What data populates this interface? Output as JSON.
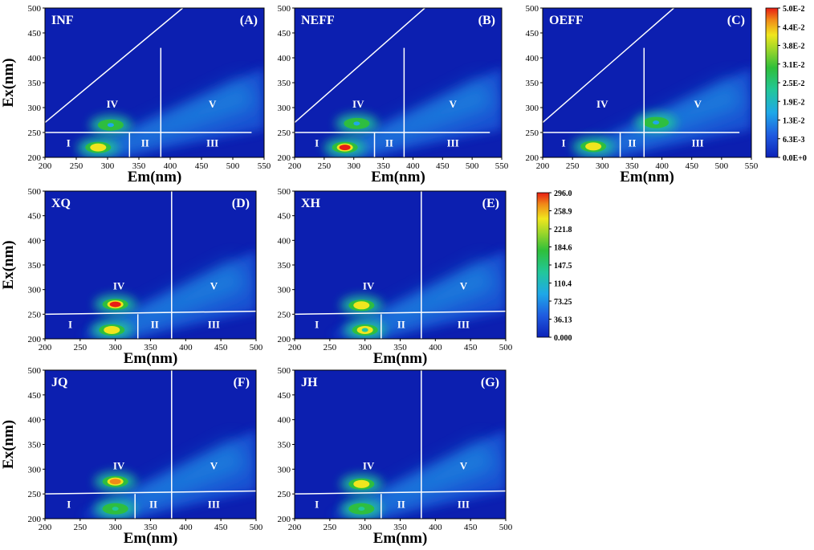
{
  "figure": {
    "panels": [
      {
        "name": "INF",
        "tag": "(A)",
        "ytick_labels": [
          "200",
          "250",
          "300",
          "350",
          "400",
          "450",
          "500"
        ],
        "xtick_labels": [
          "200",
          "250",
          "300",
          "350",
          "400",
          "450",
          "500",
          "550"
        ],
        "xlabel": "Em(nm)",
        "ylabel": "Ex(nm)",
        "region_labels": [
          "I",
          "II",
          "III",
          "IV",
          "V"
        ]
      },
      {
        "name": "NEFF",
        "tag": "(B)",
        "ytick_labels": [
          "200",
          "250",
          "300",
          "350",
          "400",
          "450",
          "500"
        ],
        "xtick_labels": [
          "200",
          "250",
          "300",
          "350",
          "400",
          "450",
          "500",
          "550"
        ],
        "xlabel": "Em(nm)",
        "ylabel": "",
        "region_labels": [
          "I",
          "II",
          "III",
          "IV",
          "V"
        ]
      },
      {
        "name": "OEFF",
        "tag": "(C)",
        "ytick_labels": [
          "200",
          "250",
          "300",
          "350",
          "400",
          "450",
          "500"
        ],
        "xtick_labels": [
          "200",
          "250",
          "300",
          "350",
          "400",
          "450",
          "500",
          "550"
        ],
        "xlabel": "Em(nm)",
        "ylabel": "",
        "region_labels": [
          "I",
          "II",
          "III",
          "IV",
          "V"
        ]
      },
      {
        "name": "XQ",
        "tag": "(D)",
        "ytick_labels": [
          "200",
          "250",
          "300",
          "350",
          "400",
          "450",
          "500"
        ],
        "xtick_labels": [
          "200",
          "250",
          "300",
          "350",
          "400",
          "450",
          "500"
        ],
        "xlabel": "Em(nm)",
        "ylabel": "Ex(nm)",
        "region_labels": [
          "I",
          "II",
          "III",
          "IV",
          "V"
        ]
      },
      {
        "name": "XH",
        "tag": "(E)",
        "ytick_labels": [
          "200",
          "250",
          "300",
          "350",
          "400",
          "450",
          "500"
        ],
        "xtick_labels": [
          "200",
          "250",
          "300",
          "350",
          "400",
          "450",
          "500"
        ],
        "xlabel": "Em(nm)",
        "ylabel": "",
        "region_labels": [
          "I",
          "II",
          "III",
          "IV",
          "V"
        ]
      },
      {
        "name": "JQ",
        "tag": "(F)",
        "ytick_labels": [
          "200",
          "250",
          "300",
          "350",
          "400",
          "450",
          "500"
        ],
        "xtick_labels": [
          "200",
          "250",
          "300",
          "350",
          "400",
          "450",
          "500"
        ],
        "xlabel": "Em(nm)",
        "ylabel": "Ex(nm)",
        "region_labels": [
          "I",
          "II",
          "III",
          "IV",
          "V"
        ]
      },
      {
        "name": "JH",
        "tag": "(G)",
        "ytick_labels": [
          "200",
          "250",
          "300",
          "350",
          "400",
          "450",
          "500"
        ],
        "xtick_labels": [
          "200",
          "250",
          "300",
          "350",
          "400",
          "450",
          "500"
        ],
        "xlabel": "Em(nm)",
        "ylabel": "",
        "region_labels": [
          "I",
          "II",
          "III",
          "IV",
          "V"
        ]
      }
    ],
    "colorbars": [
      {
        "labels": [
          "5.0E-2",
          "4.4E-2",
          "3.8E-2",
          "3.1E-2",
          "2.5E-2",
          "1.9E-2",
          "1.3E-2",
          "6.3E-3",
          "0.0E+0"
        ]
      },
      {
        "labels": [
          "296.0",
          "258.9",
          "221.8",
          "184.6",
          "147.5",
          "110.4",
          "73.25",
          "36.13",
          "0.000"
        ]
      }
    ]
  },
  "chart_data": [
    {
      "type": "heatmap",
      "title": "INF (A)",
      "xlabel": "Em(nm)",
      "ylabel": "Ex(nm)",
      "xlim": [
        200,
        550
      ],
      "ylim": [
        200,
        500
      ],
      "hotspots": [
        {
          "em": 285,
          "ex": 220,
          "level": 0.045
        },
        {
          "em": 305,
          "ex": 265,
          "level": 0.018
        }
      ],
      "colorbar_range": [
        0,
        0.05
      ]
    },
    {
      "type": "heatmap",
      "title": "NEFF (B)",
      "xlabel": "Em(nm)",
      "ylabel": "Ex(nm)",
      "xlim": [
        200,
        550
      ],
      "ylim": [
        200,
        500
      ],
      "hotspots": [
        {
          "em": 285,
          "ex": 220,
          "level": 0.05
        },
        {
          "em": 305,
          "ex": 268,
          "level": 0.015
        }
      ],
      "colorbar_range": [
        0,
        0.05
      ]
    },
    {
      "type": "heatmap",
      "title": "OEFF (C)",
      "xlabel": "Em(nm)",
      "ylabel": "Ex(nm)",
      "xlim": [
        200,
        550
      ],
      "ylim": [
        200,
        500
      ],
      "hotspots": [
        {
          "em": 285,
          "ex": 222,
          "level": 0.045
        },
        {
          "em": 390,
          "ex": 270,
          "level": 0.022
        }
      ],
      "colorbar_range": [
        0,
        0.05
      ]
    },
    {
      "type": "heatmap",
      "title": "XQ (D)",
      "xlabel": "Em(nm)",
      "ylabel": "Ex(nm)",
      "xlim": [
        200,
        500
      ],
      "ylim": [
        200,
        500
      ],
      "hotspots": [
        {
          "em": 300,
          "ex": 270,
          "level": 296
        },
        {
          "em": 295,
          "ex": 218,
          "level": 260
        }
      ],
      "colorbar_range": [
        0,
        296
      ]
    },
    {
      "type": "heatmap",
      "title": "XH (E)",
      "xlabel": "Em(nm)",
      "ylabel": "Ex(nm)",
      "xlim": [
        200,
        500
      ],
      "ylim": [
        200,
        500
      ],
      "hotspots": [
        {
          "em": 295,
          "ex": 268,
          "level": 270
        },
        {
          "em": 300,
          "ex": 218,
          "level": 170
        }
      ],
      "colorbar_range": [
        0,
        296
      ]
    },
    {
      "type": "heatmap",
      "title": "JQ (F)",
      "xlabel": "Em(nm)",
      "ylabel": "Ex(nm)",
      "xlim": [
        200,
        500
      ],
      "ylim": [
        200,
        500
      ],
      "hotspots": [
        {
          "em": 300,
          "ex": 275,
          "level": 290
        },
        {
          "em": 300,
          "ex": 220,
          "level": 160
        }
      ],
      "colorbar_range": [
        0,
        296
      ]
    },
    {
      "type": "heatmap",
      "title": "JH (G)",
      "xlabel": "Em(nm)",
      "ylabel": "Ex(nm)",
      "xlim": [
        200,
        500
      ],
      "ylim": [
        200,
        500
      ],
      "hotspots": [
        {
          "em": 295,
          "ex": 270,
          "level": 270
        },
        {
          "em": 295,
          "ex": 220,
          "level": 150
        }
      ],
      "colorbar_range": [
        0,
        296
      ]
    }
  ]
}
